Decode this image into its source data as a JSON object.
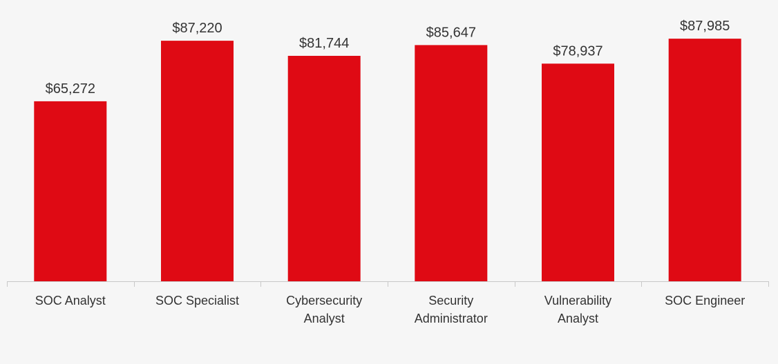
{
  "chart_data": {
    "type": "bar",
    "title": "",
    "xlabel": "",
    "ylabel": "",
    "categories": [
      [
        "SOC Analyst"
      ],
      [
        "SOC Specialist"
      ],
      [
        "Cybersecurity",
        "Analyst"
      ],
      [
        "Security",
        "Administrator"
      ],
      [
        "Vulnerability",
        "Analyst"
      ],
      [
        "SOC Engineer"
      ]
    ],
    "values": [
      65272,
      87220,
      81744,
      85647,
      78937,
      87985
    ],
    "value_labels": [
      "$65,272",
      "$87,220",
      "$81,744",
      "$85,647",
      "$78,937",
      "$87,985"
    ],
    "ylim": [
      0,
      100000
    ],
    "grid": false,
    "legend": "none",
    "colors": {
      "bar": "#df0a14",
      "axis": "#c8c8c8",
      "text": "#333333",
      "background": "#f6f6f6"
    }
  }
}
